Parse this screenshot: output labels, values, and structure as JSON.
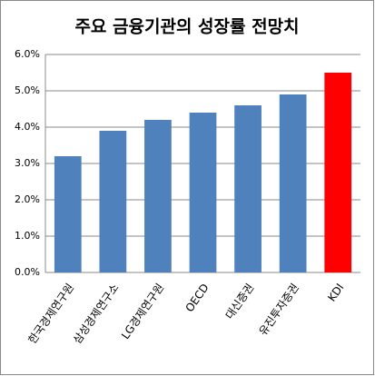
{
  "chart_data": {
    "type": "bar",
    "title": "주요 금융기관의 성장률 전망치",
    "categories": [
      "한국경제연구원",
      "삼성경제연구소",
      "LG경제연구원",
      "OECD",
      "대신증권",
      "유진투자증권",
      "KDI"
    ],
    "values": [
      3.2,
      3.9,
      4.2,
      4.4,
      4.6,
      4.9,
      5.5
    ],
    "colors": [
      "#4f81bd",
      "#4f81bd",
      "#4f81bd",
      "#4f81bd",
      "#4f81bd",
      "#4f81bd",
      "#ff0000"
    ],
    "ylim": [
      0,
      6
    ],
    "yticks": [
      {
        "value": 0,
        "label": "0.0%"
      },
      {
        "value": 1,
        "label": "1.0%"
      },
      {
        "value": 2,
        "label": "2.0%"
      },
      {
        "value": 3,
        "label": "3.0%"
      },
      {
        "value": 4,
        "label": "4.0%"
      },
      {
        "value": 5,
        "label": "5.0%"
      },
      {
        "value": 6,
        "label": "6.0%"
      }
    ],
    "grid": true
  }
}
